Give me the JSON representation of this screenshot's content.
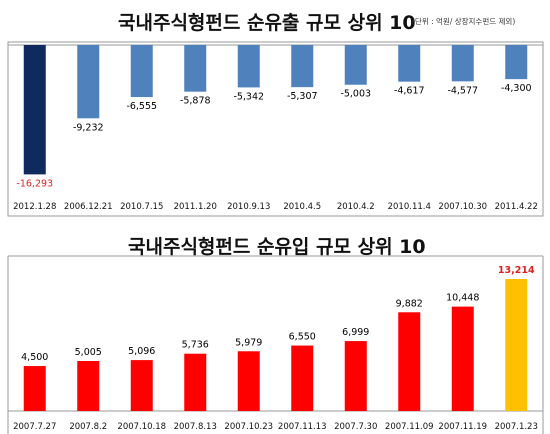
{
  "chart_data": [
    {
      "type": "bar",
      "title": "국내주식형펀드  순유출 규모 상위 10",
      "note": "(단위 : 억원/ 상장지수펀드 제외)",
      "categories": [
        "2012.1.28",
        "2006.12.21",
        "2010.7.15",
        "2011.1.20",
        "2010.9.13",
        "2010.4.5",
        "2010.4.2",
        "2010.11.4",
        "2007.10.30",
        "2011.4.22"
      ],
      "values": [
        -16293,
        -9232,
        -6555,
        -5878,
        -5342,
        -5307,
        -5003,
        -4617,
        -4577,
        -4300
      ],
      "value_labels": [
        "-16,293",
        "-9,232",
        "-6,555",
        "-5,878",
        "-5,342",
        "-5,307",
        "-5,003",
        "-4,617",
        "-4,577",
        "-4,300"
      ],
      "colors": [
        "#0f2a5c",
        "#4f81bd",
        "#4f81bd",
        "#4f81bd",
        "#4f81bd",
        "#4f81bd",
        "#4f81bd",
        "#4f81bd",
        "#4f81bd",
        "#4f81bd"
      ],
      "label_colors": [
        "#e02020",
        "#000000",
        "#000000",
        "#000000",
        "#000000",
        "#000000",
        "#000000",
        "#000000",
        "#000000",
        "#000000"
      ],
      "ylim": [
        -17000,
        0
      ]
    },
    {
      "type": "bar",
      "title": "국내주식형펀드 순유입 규모 상위 10",
      "categories": [
        "2007.7.27",
        "2007.8.2",
        "2007.10.18",
        "2007.8.13",
        "2007.10.23",
        "2007.11.13",
        "2007.7.30",
        "2007.11.09",
        "2007.11.19",
        "2007.1.23"
      ],
      "values": [
        4500,
        5005,
        5096,
        5736,
        5979,
        6550,
        6999,
        9882,
        10448,
        13214
      ],
      "value_labels": [
        "4,500",
        "5,005",
        "5,096",
        "5,736",
        "5,979",
        "6,550",
        "6,999",
        "9,882",
        "10,448",
        "13,214"
      ],
      "colors": [
        "#ff0000",
        "#ff0000",
        "#ff0000",
        "#ff0000",
        "#ff0000",
        "#ff0000",
        "#ff0000",
        "#ff0000",
        "#ff0000",
        "#ffc000"
      ],
      "label_colors": [
        "#000000",
        "#000000",
        "#000000",
        "#000000",
        "#000000",
        "#000000",
        "#000000",
        "#000000",
        "#000000",
        "#e02020"
      ],
      "ylim": [
        0,
        13500
      ]
    }
  ]
}
